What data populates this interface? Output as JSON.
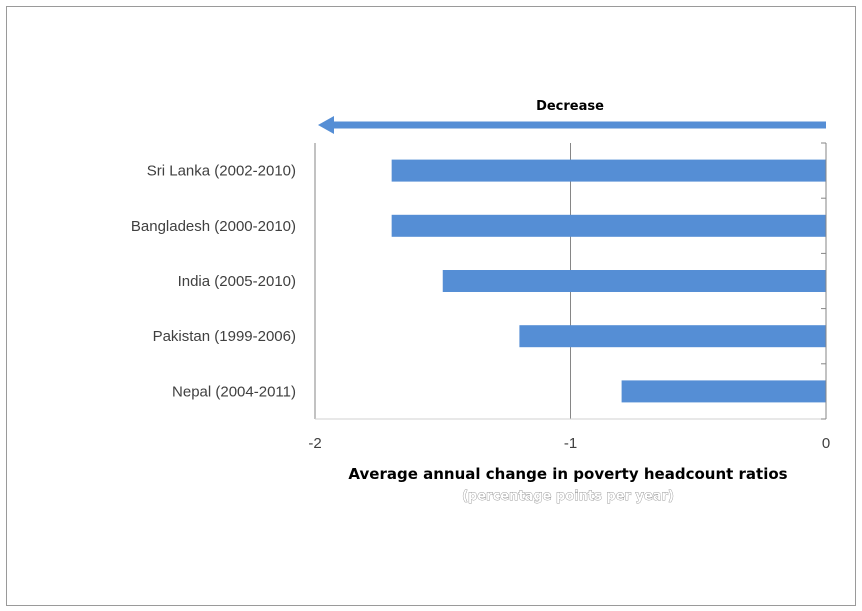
{
  "chart_data": {
    "type": "bar",
    "orientation": "horizontal",
    "categories": [
      "Sri Lanka (2002-2010)",
      "Bangladesh (2000-2010)",
      "India (2005-2010)",
      "Pakistan (1999-2006)",
      "Nepal (2004-2011)"
    ],
    "values": [
      -1.7,
      -1.7,
      -1.5,
      -1.2,
      -0.8
    ],
    "xlabel": "Average annual change in poverty headcount ratios",
    "xlabel_sub": "(percentage points per year)",
    "xlim": [
      -2,
      0
    ],
    "xticks": [
      -2,
      -1,
      0
    ],
    "xtick_labels": [
      "-2",
      "-1",
      "0"
    ],
    "grid": "vertical",
    "bar_color": "#558ed5",
    "annotation": {
      "text": "Decrease",
      "arrow_direction": "left"
    }
  }
}
